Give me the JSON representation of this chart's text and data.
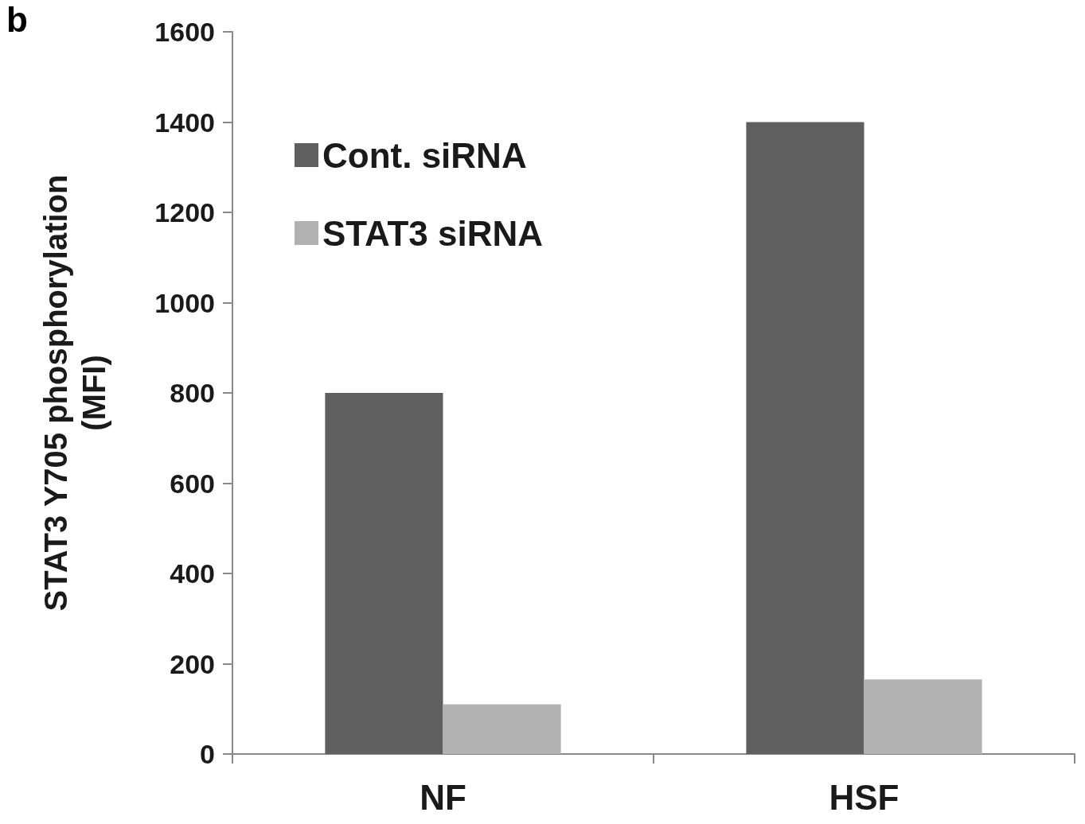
{
  "chart_data": {
    "type": "bar",
    "categories": [
      "NF",
      "HSF"
    ],
    "series": [
      {
        "name": "Cont. siRNA",
        "color": "#5f5f5f",
        "values": [
          800,
          1400
        ]
      },
      {
        "name": "STAT3 siRNA",
        "color": "#b2b2b2",
        "values": [
          110,
          165
        ]
      }
    ],
    "ylabel": "STAT3 Y705 phosphorylation\n(MFI)",
    "ylim": [
      0,
      1600
    ],
    "yticks": [
      0,
      200,
      400,
      600,
      800,
      1000,
      1200,
      1400,
      1600
    ],
    "grid": false,
    "legend": "top left",
    "annotations": [
      "b"
    ]
  }
}
